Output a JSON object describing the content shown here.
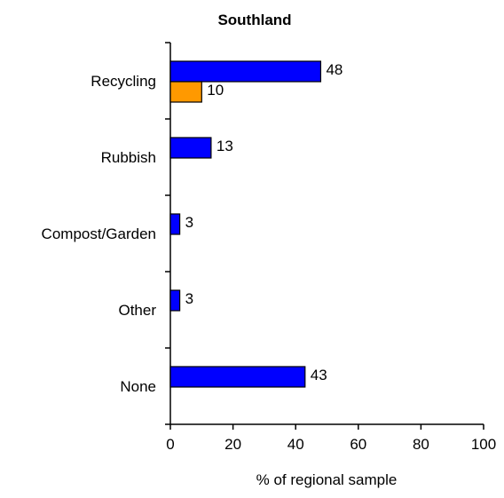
{
  "chart_data": {
    "type": "bar",
    "orientation": "horizontal",
    "title": "Southland",
    "xlabel": "% of regional sample",
    "ylabel": "",
    "xlim": [
      0,
      100
    ],
    "xticks": [
      0,
      20,
      40,
      60,
      80,
      100
    ],
    "categories": [
      "Recycling",
      "Rubbish",
      "Compost/Garden",
      "Other",
      "None"
    ],
    "series": [
      {
        "color": "#0000ff",
        "values": [
          48,
          13,
          3,
          3,
          43
        ]
      },
      {
        "color": "#ff9900",
        "values": [
          10,
          null,
          null,
          null,
          null
        ]
      }
    ],
    "grid": false,
    "legend": "none"
  }
}
